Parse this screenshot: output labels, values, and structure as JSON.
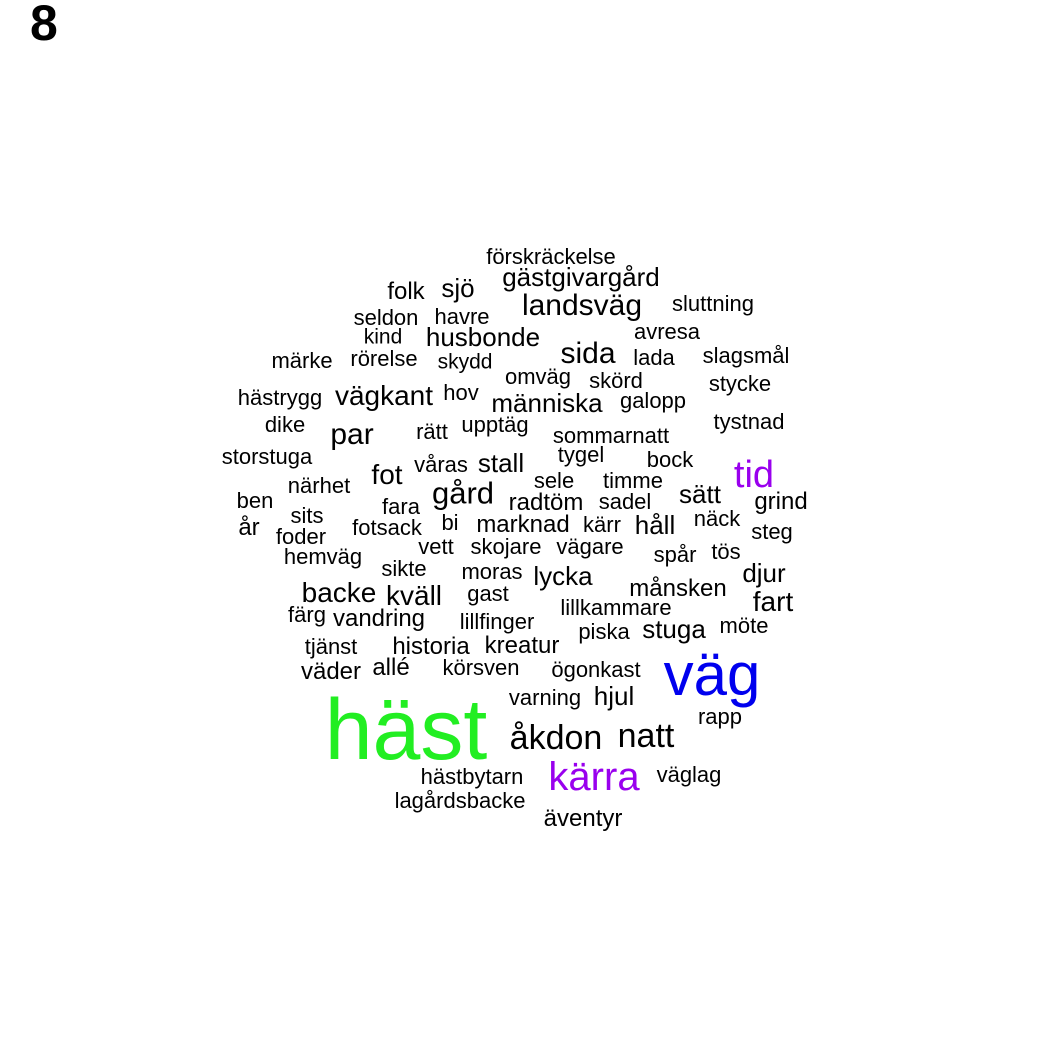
{
  "panel_label": "8",
  "colors": {
    "default": "#000000",
    "green": "#22ee22",
    "blue": "#0000ee",
    "purple": "#9900ee"
  },
  "words": [
    {
      "text": "häst",
      "color": "green"
    },
    {
      "text": "väg",
      "color": "blue"
    },
    {
      "text": "tid",
      "color": "purple"
    },
    {
      "text": "kärra",
      "color": "purple"
    },
    {
      "text": "åkdon"
    },
    {
      "text": "natt"
    },
    {
      "text": "landsväg"
    },
    {
      "text": "gård"
    },
    {
      "text": "sida"
    },
    {
      "text": "par"
    },
    {
      "text": "förskräckelse"
    },
    {
      "text": "gästgivargård"
    },
    {
      "text": "sjö"
    },
    {
      "text": "folk"
    },
    {
      "text": "sluttning"
    },
    {
      "text": "seldon"
    },
    {
      "text": "havre"
    },
    {
      "text": "kind"
    },
    {
      "text": "husbonde"
    },
    {
      "text": "avresa"
    },
    {
      "text": "märke"
    },
    {
      "text": "rörelse"
    },
    {
      "text": "skydd"
    },
    {
      "text": "lada"
    },
    {
      "text": "slagsmål"
    },
    {
      "text": "omväg"
    },
    {
      "text": "skörd"
    },
    {
      "text": "stycke"
    },
    {
      "text": "hästrygg"
    },
    {
      "text": "vägkant"
    },
    {
      "text": "hov"
    },
    {
      "text": "människa"
    },
    {
      "text": "galopp"
    },
    {
      "text": "dike"
    },
    {
      "text": "rätt"
    },
    {
      "text": "upptäg"
    },
    {
      "text": "sommarnatt"
    },
    {
      "text": "tystnad"
    },
    {
      "text": "storstuga"
    },
    {
      "text": "våras"
    },
    {
      "text": "stall"
    },
    {
      "text": "tygel"
    },
    {
      "text": "bock"
    },
    {
      "text": "fot"
    },
    {
      "text": "närhet"
    },
    {
      "text": "sele"
    },
    {
      "text": "timme"
    },
    {
      "text": "ben"
    },
    {
      "text": "fara"
    },
    {
      "text": "radtöm"
    },
    {
      "text": "sadel"
    },
    {
      "text": "sätt"
    },
    {
      "text": "grind"
    },
    {
      "text": "sits"
    },
    {
      "text": "år"
    },
    {
      "text": "fotsack"
    },
    {
      "text": "bi"
    },
    {
      "text": "marknad"
    },
    {
      "text": "kärr"
    },
    {
      "text": "håll"
    },
    {
      "text": "näck"
    },
    {
      "text": "steg"
    },
    {
      "text": "foder"
    },
    {
      "text": "vett"
    },
    {
      "text": "skojare"
    },
    {
      "text": "vägare"
    },
    {
      "text": "hemväg"
    },
    {
      "text": "spår"
    },
    {
      "text": "tös"
    },
    {
      "text": "sikte"
    },
    {
      "text": "moras"
    },
    {
      "text": "lycka"
    },
    {
      "text": "djur"
    },
    {
      "text": "backe"
    },
    {
      "text": "kväll"
    },
    {
      "text": "gast"
    },
    {
      "text": "månsken"
    },
    {
      "text": "fart"
    },
    {
      "text": "färg"
    },
    {
      "text": "vandring"
    },
    {
      "text": "lillfinger"
    },
    {
      "text": "lillkammare"
    },
    {
      "text": "stuga"
    },
    {
      "text": "möte"
    },
    {
      "text": "piska"
    },
    {
      "text": "tjänst"
    },
    {
      "text": "historia"
    },
    {
      "text": "kreatur"
    },
    {
      "text": "allé"
    },
    {
      "text": "väder"
    },
    {
      "text": "körsven"
    },
    {
      "text": "ögonkast"
    },
    {
      "text": "varning"
    },
    {
      "text": "hjul"
    },
    {
      "text": "rapp"
    },
    {
      "text": "hästbytarn"
    },
    {
      "text": "väglag"
    },
    {
      "text": "lagårdsbacke"
    },
    {
      "text": "äventyr"
    }
  ]
}
